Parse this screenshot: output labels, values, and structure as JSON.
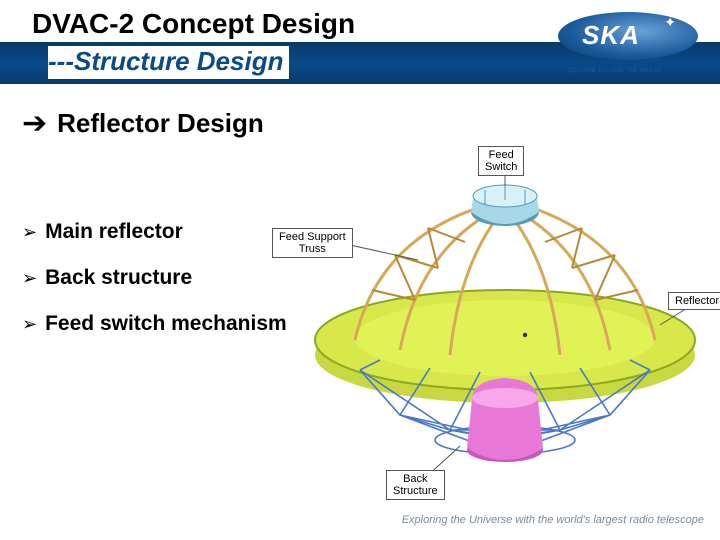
{
  "header": {
    "title_main": "DVAC-2 Concept Design",
    "title_sub": "---Structure Design",
    "bar_gradient": [
      "#0a3a6a",
      "#0a4a8a",
      "#0a3a6a"
    ]
  },
  "logo": {
    "text": "SKA",
    "tagline": "SQUARE KILOMETRE ARRAY",
    "oval_colors": [
      "#6aa0d8",
      "#1a5a9a",
      "#0a3a6a"
    ],
    "text_color": "#ffffff"
  },
  "section": {
    "arrow": "➔",
    "heading": "Reflector Design"
  },
  "bullets": {
    "marker": "➢",
    "items": [
      "Main reflector",
      "Back structure",
      "Feed switch mechanism"
    ]
  },
  "diagram": {
    "callouts": {
      "feed_switch": "Feed\nSwitch",
      "feed_support": "Feed Support\nTruss",
      "reflector": "Reflector",
      "back_structure": "Back\nStructure"
    },
    "colors": {
      "dish_top": "#d8e84a",
      "dish_rim": "#8aa820",
      "dish_under": "#c8d840",
      "truss": "#d8a858",
      "truss_dark": "#b88838",
      "hub_body": "#a8d8e8",
      "hub_rim": "#5a98b8",
      "back_truss": "#4a78c8",
      "pedestal": "#e878d8",
      "pedestal_shadow": "#c858b8",
      "callout_line": "#555555"
    }
  },
  "footer": {
    "text": "Exploring the Universe with the world's largest radio telescope",
    "color": "#7a8a9a"
  }
}
